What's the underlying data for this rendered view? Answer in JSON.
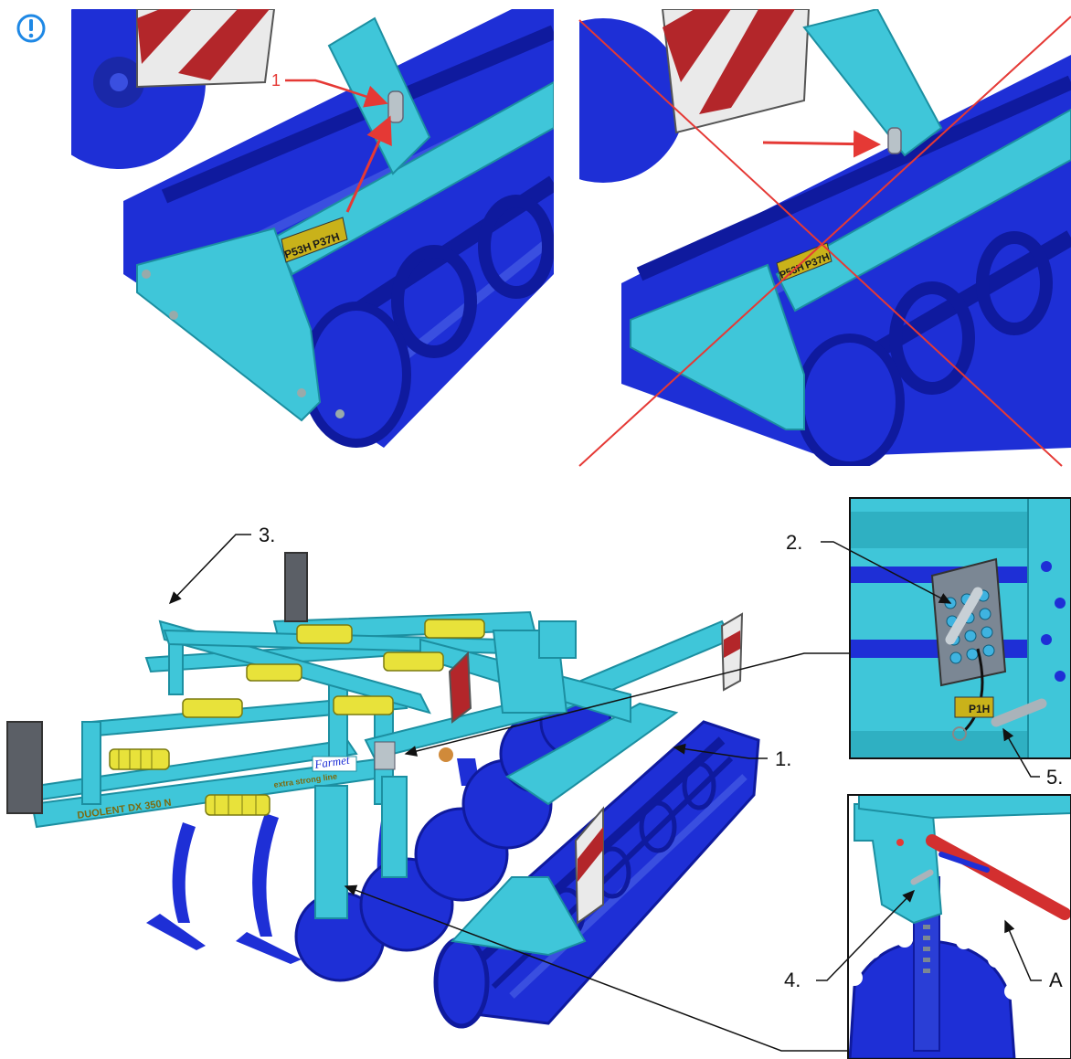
{
  "warning_icon": "exclamation-circle-icon",
  "colors": {
    "frame": "#3fc6d9",
    "roller": "#1e2fd6",
    "spring": "#e8e23a",
    "red": "#e53935",
    "stripe_red": "#b3262a",
    "decal_bg": "#c9b21a"
  },
  "top_left": {
    "callout_1": "1",
    "decal_left": "P53H",
    "decal_right": "P37H"
  },
  "top_right": {
    "decal_left": "P53H",
    "decal_right": "P37H"
  },
  "main": {
    "callout_1": "1.",
    "callout_3": "3.",
    "brand": "Farmet",
    "model": "DUOLENT DX 350 N",
    "tagline": "extra strong line"
  },
  "detail_top": {
    "callout_2": "2.",
    "callout_5": "5.",
    "decal": "P1H"
  },
  "detail_bottom": {
    "callout_4": "4.",
    "callout_a": "A"
  }
}
